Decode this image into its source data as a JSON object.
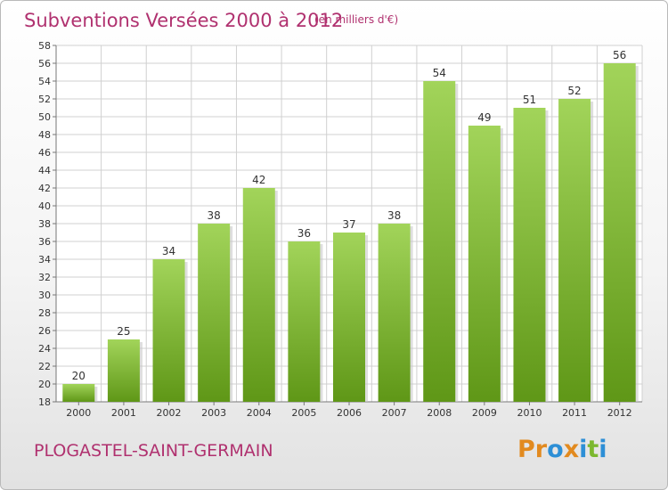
{
  "title": "Subventions Versées 2000 à 2012",
  "unit_note": "(en milliers d'€)",
  "commune": "PLOGASTEL-SAINT-GERMAIN",
  "logo": {
    "letters": [
      "P",
      "r",
      "o",
      "x",
      "i",
      "t",
      "i"
    ],
    "colors": [
      "#e28a1f",
      "#e28a1f",
      "#2d8fd6",
      "#e28a1f",
      "#2d8fd6",
      "#7cb82f",
      "#2d8fd6"
    ]
  },
  "colors": {
    "accent": "#b0316f",
    "bar_light": "#a2d45a",
    "bar_dark": "#5f9717",
    "grid": "#d0d0d0"
  },
  "chart_data": {
    "type": "bar",
    "categories": [
      "2000",
      "2001",
      "2002",
      "2003",
      "2004",
      "2005",
      "2006",
      "2007",
      "2008",
      "2009",
      "2010",
      "2011",
      "2012"
    ],
    "values": [
      20,
      25,
      34,
      38,
      42,
      36,
      37,
      38,
      54,
      49,
      51,
      52,
      56
    ],
    "ylim": [
      18,
      58
    ],
    "ytick_step": 2,
    "grid": true,
    "data_labels": true
  }
}
